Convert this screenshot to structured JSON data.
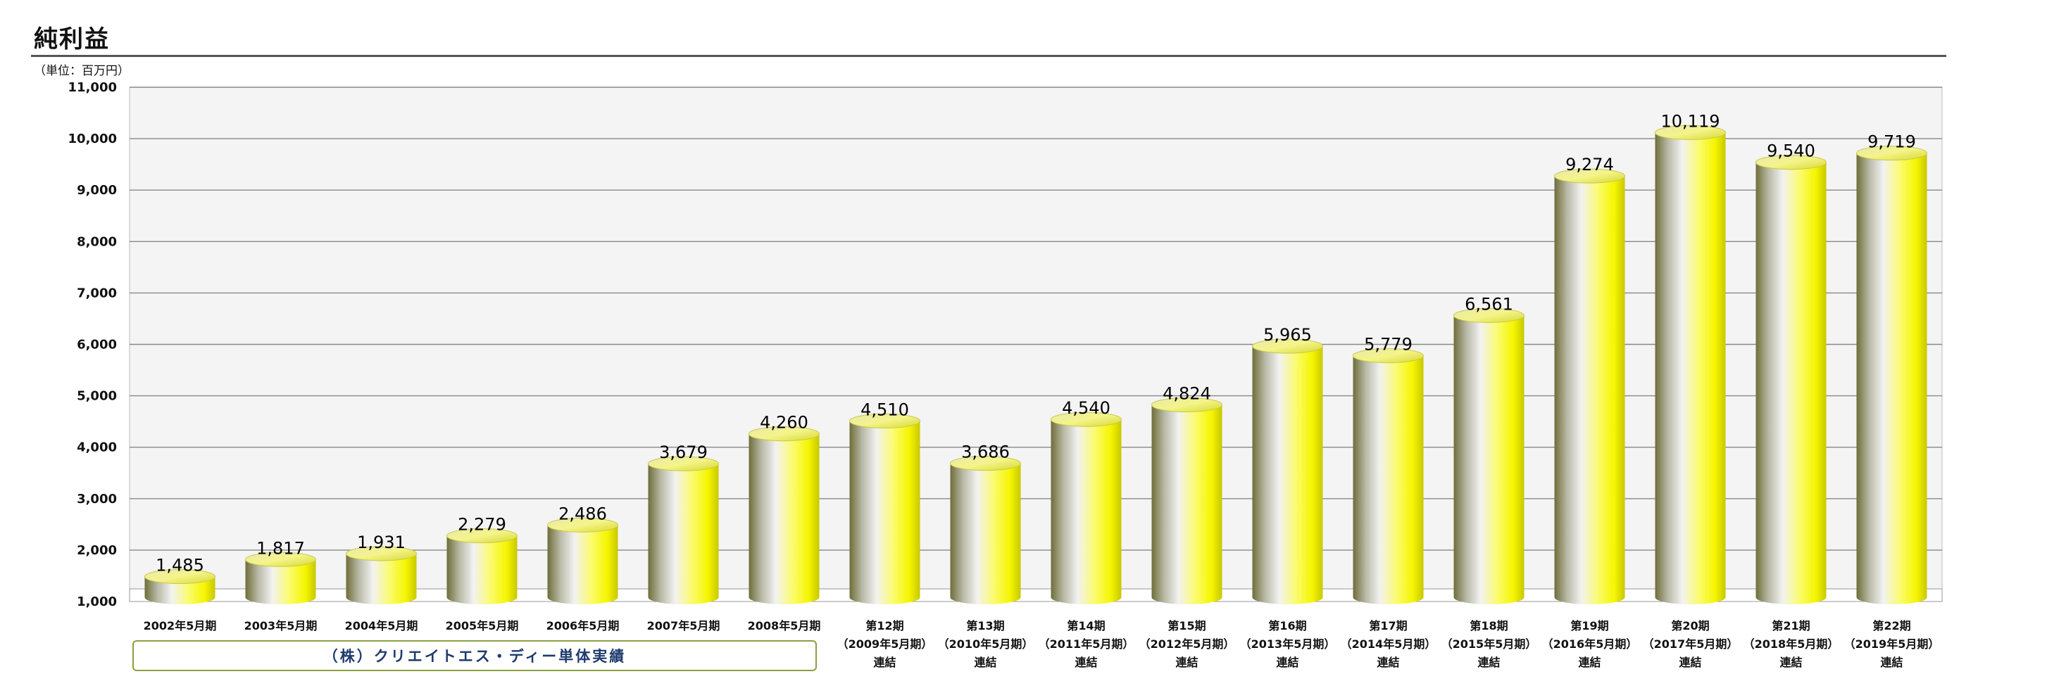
{
  "chart_data": {
    "type": "bar",
    "title": "純利益",
    "unit_label": "（単位：百万円）",
    "categories": [
      [
        "2002年5月期"
      ],
      [
        "2003年5月期"
      ],
      [
        "2004年5月期"
      ],
      [
        "2005年5月期"
      ],
      [
        "2006年5月期"
      ],
      [
        "2007年5月期"
      ],
      [
        "2008年5月期"
      ],
      [
        "第12期",
        "（2009年5月期）",
        "連結"
      ],
      [
        "第13期",
        "（2010年5月期）",
        "連結"
      ],
      [
        "第14期",
        "（2011年5月期）",
        "連結"
      ],
      [
        "第15期",
        "（2012年5月期）",
        "連結"
      ],
      [
        "第16期",
        "（2013年5月期）",
        "連結"
      ],
      [
        "第17期",
        "（2014年5月期）",
        "連結"
      ],
      [
        "第18期",
        "（2015年5月期）",
        "連結"
      ],
      [
        "第19期",
        "（2016年5月期）",
        "連結"
      ],
      [
        "第20期",
        "（2017年5月期）",
        "連結"
      ],
      [
        "第21期",
        "（2018年5月期）",
        "連結"
      ],
      [
        "第22期",
        "（2019年5月期）",
        "連結"
      ]
    ],
    "values": [
      1485,
      1817,
      1931,
      2279,
      2486,
      3679,
      4260,
      4510,
      3686,
      4540,
      4824,
      5965,
      5779,
      6561,
      9274,
      10119,
      9540,
      9719
    ],
    "data_labels": [
      "1,485",
      "1,817",
      "1,931",
      "2,279",
      "2,486",
      "3,679",
      "4,260",
      "4,510",
      "3,686",
      "4,540",
      "4,824",
      "5,965",
      "5,779",
      "6,561",
      "9,274",
      "10,119",
      "9,540",
      "9,719"
    ],
    "ylim": [
      1000,
      11000
    ],
    "yticks": [
      1000,
      2000,
      3000,
      4000,
      5000,
      6000,
      7000,
      8000,
      9000,
      10000,
      11000
    ],
    "ytick_labels": [
      "1,000",
      "2,000",
      "3,000",
      "4,000",
      "5,000",
      "6,000",
      "7,000",
      "8,000",
      "9,000",
      "10,000",
      "11,000"
    ],
    "grid": true,
    "bar_style": "cylinder",
    "bar_color": "#f5f500",
    "plot_background": "#f4f4f4",
    "group_note": "（株）クリエイトエス・ディー単体実績"
  }
}
